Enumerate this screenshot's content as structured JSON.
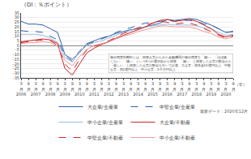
{
  "chart_data": {
    "type": "line",
    "title": "（DI：％ポイント）",
    "xlabel": "（年）",
    "categories": [
      "3\n月\n2006",
      "9\n月",
      "3\n月\n2007",
      "9\n月",
      "3\n月\n2008",
      "9\n月",
      "3\n月\n2009",
      "9\n月",
      "3\n月\n2010",
      "9\n月",
      "3\n月\n2011",
      "9\n月",
      "3\n月\n2012",
      "9\n月",
      "3\n月\n2013",
      "9\n月",
      "3\n月\n2014",
      "9\n月",
      "3\n月\n2015",
      "9\n月",
      "3\n月\n2016",
      "9\n月",
      "3\n月\n2017",
      "9\n月",
      "3\n月\n2018",
      "9\n月",
      "3\n月\n2019",
      "9\n月",
      "3\n月\n2020",
      "9\n月"
    ],
    "series": [
      {
        "name": "大企業/全産業",
        "color": "#3060aa",
        "line_style": "solid",
        "values": [
          26,
          23,
          23,
          22,
          18,
          14,
          -10,
          -15,
          -8,
          2,
          5,
          8,
          10,
          13,
          15,
          17,
          18,
          20,
          22,
          24,
          28,
          27,
          28,
          29,
          28,
          25,
          22,
          18,
          14,
          15
        ]
      },
      {
        "name": "中堅企業/全産業",
        "color": "#3060aa",
        "line_style": "dashed",
        "values": [
          16,
          15,
          15,
          14,
          10,
          6,
          -11,
          -17,
          -6,
          1,
          4,
          7,
          10,
          14,
          17,
          19,
          22,
          24,
          25,
          26,
          27,
          26,
          27,
          27,
          26,
          23,
          22,
          18,
          14,
          15
        ]
      },
      {
        "name": "中小企業/全産業",
        "color": "#99bbdd",
        "line_style": "solid",
        "values": [
          12,
          12,
          12,
          11,
          8,
          3,
          -13,
          -18,
          -7,
          0,
          3,
          5,
          8,
          11,
          14,
          16,
          19,
          20,
          21,
          22,
          23,
          22,
          22,
          22,
          21,
          19,
          18,
          14,
          11,
          12
        ]
      },
      {
        "name": "大企業/不動産",
        "color": "#cc2222",
        "line_style": "solid",
        "values": [
          4,
          5,
          6,
          7,
          6,
          2,
          -25,
          -32,
          -20,
          -8,
          -3,
          1,
          4,
          8,
          11,
          14,
          17,
          20,
          24,
          27,
          28,
          26,
          27,
          28,
          26,
          22,
          18,
          12,
          9,
          11
        ]
      },
      {
        "name": "中堅企業/不動産",
        "color": "#cc2222",
        "line_style": "dashed",
        "values": [
          3,
          4,
          5,
          6,
          5,
          0,
          -20,
          -28,
          -15,
          -5,
          -1,
          2,
          5,
          9,
          13,
          16,
          19,
          22,
          24,
          26,
          25,
          23,
          24,
          24,
          22,
          18,
          15,
          11,
          8,
          10
        ]
      },
      {
        "name": "中小企業/不動産",
        "color": "#ee9999",
        "line_style": "solid",
        "values": [
          2,
          3,
          3,
          4,
          3,
          -1,
          -16,
          -22,
          -12,
          -4,
          0,
          2,
          4,
          7,
          10,
          12,
          15,
          17,
          19,
          21,
          21,
          20,
          20,
          20,
          18,
          15,
          13,
          9,
          7,
          9
        ]
      }
    ],
    "ylim": [
      -35,
      35
    ],
    "yticks": [
      -35,
      -30,
      -25,
      -20,
      -15,
      -10,
      -5,
      0,
      5,
      10,
      15,
      20,
      25,
      30,
      35
    ],
    "grid": true,
    "legend": "bottom",
    "annotation": "貸出態度判断DIとは、回答企業からみた金融機関の貸出態度を「緩い」「ほぼ緩\nくない」「緩い」という5つの選択肢から回答、「緩い」と回答した企業の割合から\n「厳しい」と回答した企業の割合を引いて計算。大企業：資本金10億円以上、中堅\n企業：同1億円以上、中小企業：3千万円以上",
    "source_note": "最新データ：2020年12月"
  }
}
